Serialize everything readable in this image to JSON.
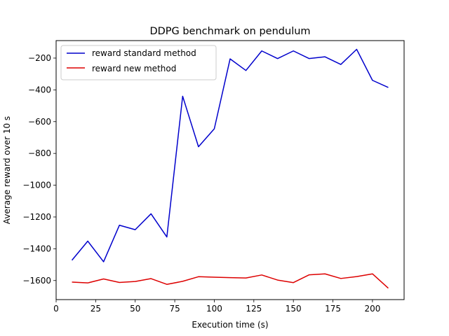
{
  "chart_data": {
    "type": "line",
    "title": "DDPG benchmark on pendulum",
    "xlabel": "Execution time (s)",
    "ylabel": "Average reward over 10 s",
    "xlim": [
      0,
      220
    ],
    "ylim": [
      -1720,
      -90
    ],
    "xticks": [
      0,
      25,
      50,
      75,
      100,
      125,
      150,
      175,
      200
    ],
    "yticks": [
      -1600,
      -1400,
      -1200,
      -1000,
      -800,
      -600,
      -400,
      -200
    ],
    "grid": false,
    "legend_position": "upper left",
    "x": [
      10,
      20,
      30,
      40,
      50,
      60,
      70,
      80,
      90,
      100,
      110,
      120,
      130,
      140,
      150,
      160,
      170,
      180,
      190,
      200,
      210
    ],
    "series": [
      {
        "name": "reward standard method",
        "color": "#0000cc",
        "values": [
          -1472,
          -1352,
          -1482,
          -1252,
          -1280,
          -1180,
          -1326,
          -440,
          -758,
          -645,
          -205,
          -278,
          -155,
          -203,
          -155,
          -203,
          -192,
          -240,
          -145,
          -340,
          -385
        ]
      },
      {
        "name": "reward new method",
        "color": "#dd0000",
        "values": [
          -1610,
          -1615,
          -1590,
          -1612,
          -1606,
          -1588,
          -1624,
          -1605,
          -1576,
          -1579,
          -1582,
          -1584,
          -1565,
          -1597,
          -1613,
          -1564,
          -1558,
          -1587,
          -1575,
          -1558,
          -1648
        ]
      }
    ]
  }
}
